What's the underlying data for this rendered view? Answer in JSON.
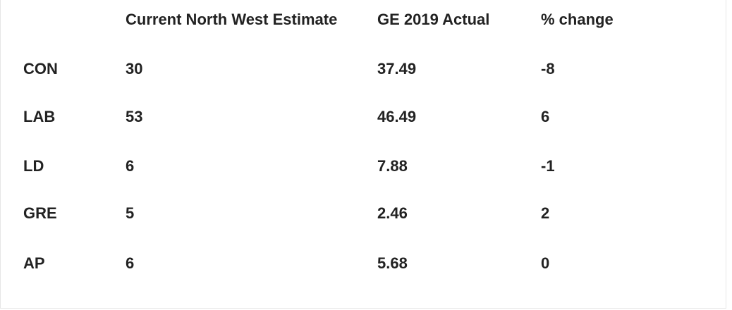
{
  "table": {
    "columns": [
      "Current North West Estimate",
      "GE 2019 Actual",
      "% change"
    ],
    "rows": [
      [
        "CON",
        "30",
        "37.49",
        "-8"
      ],
      [
        "LAB",
        "53",
        "46.49",
        "6"
      ],
      [
        "LD",
        "6",
        "7.88",
        "-1"
      ],
      [
        "GRE",
        "5",
        "2.46",
        "2"
      ],
      [
        "AP",
        "6",
        "5.68",
        "0"
      ]
    ]
  }
}
